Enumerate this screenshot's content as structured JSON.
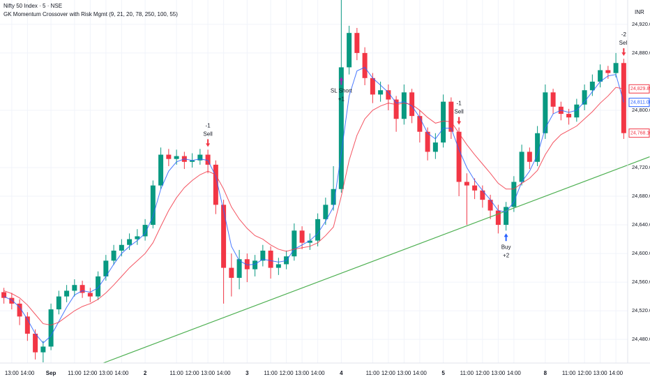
{
  "chart_data": {
    "type": "candlestick",
    "title": "Nifty 50 Index · 5 · NSE",
    "subtitle": "GK Momentum Crossover with Risk Mgmt (9, 21, 20, 78, 250, 100, 55)",
    "currency": "INR",
    "up_color": "#089981",
    "down_color": "#f23645",
    "grid": true,
    "categories": [
      null,
      "13:00",
      null,
      "14:00",
      null,
      null,
      "Sep",
      null,
      null,
      "11:00",
      null,
      "12:00",
      null,
      "13:00",
      null,
      "14:00",
      null,
      null,
      "2",
      null,
      null,
      null,
      "11:00",
      null,
      "12:00",
      null,
      "13:00",
      null,
      "14:00",
      null,
      null,
      "3",
      null,
      null,
      "11:00",
      null,
      "12:00",
      null,
      "13:00",
      null,
      "14:00",
      null,
      null,
      "4",
      null,
      null,
      null,
      "11:00",
      null,
      "12:00",
      null,
      "13:00",
      null,
      "14:00",
      null,
      null,
      "5",
      null,
      null,
      "11:00",
      null,
      "12:00",
      null,
      "13:00",
      null,
      "14:00",
      null,
      null,
      null,
      "8",
      null,
      null,
      "11:00",
      null,
      "12:00",
      null,
      "13:00",
      null,
      "14:00",
      null
    ],
    "open": [
      24546,
      24538,
      24530,
      24512,
      24488,
      24462,
      24470,
      24522,
      24540,
      24548,
      24556,
      24545,
      24540,
      24568,
      24590,
      24604,
      24612,
      24620,
      24624,
      24640,
      24695,
      24738,
      24732,
      24736,
      24728,
      24730,
      24738,
      24724,
      24668,
      24580,
      24566,
      24592,
      24578,
      24590,
      24604,
      24580,
      24585,
      24596,
      24632,
      24615,
      24618,
      24648,
      24668,
      24690,
      24860,
      24908,
      24880,
      24845,
      24822,
      24828,
      24815,
      24788,
      24825,
      24792,
      24770,
      24742,
      24755,
      24812,
      24770,
      24700,
      24695,
      24688,
      24675,
      24660,
      24640,
      24665,
      24700,
      24742,
      24728,
      24768,
      24825,
      24805,
      24795,
      24790,
      24808,
      24828,
      24840,
      24856,
      24852,
      24866
    ],
    "high": [
      24552,
      24545,
      24536,
      24518,
      24494,
      24478,
      24530,
      24548,
      24556,
      24564,
      24562,
      24552,
      24575,
      24598,
      24612,
      24620,
      24628,
      24634,
      24648,
      24702,
      24748,
      24746,
      24745,
      24742,
      24740,
      24746,
      24745,
      24730,
      24675,
      24600,
      24605,
      24600,
      24598,
      24612,
      24610,
      24594,
      24604,
      24642,
      24638,
      24628,
      24656,
      24678,
      24722,
      24954,
      24918,
      24915,
      24888,
      24852,
      24840,
      24836,
      24820,
      24836,
      24830,
      24800,
      24776,
      24768,
      24822,
      24818,
      24776,
      24712,
      24705,
      24695,
      24682,
      24668,
      24672,
      24708,
      24752,
      24748,
      24778,
      24836,
      24830,
      24812,
      24802,
      24816,
      24836,
      24850,
      24864,
      24862,
      24880,
      24872
    ],
    "low": [
      24530,
      24522,
      24500,
      24478,
      24452,
      24448,
      24465,
      24515,
      24532,
      24540,
      24538,
      24532,
      24535,
      24562,
      24584,
      24596,
      24605,
      24612,
      24618,
      24635,
      24690,
      24722,
      24724,
      24718,
      24720,
      24724,
      24712,
      24655,
      24530,
      24540,
      24550,
      24560,
      24568,
      24582,
      24565,
      24570,
      24578,
      24590,
      24606,
      24605,
      24610,
      24640,
      24660,
      24685,
      24850,
      24870,
      24835,
      24810,
      24812,
      24800,
      24770,
      24780,
      24782,
      24755,
      24730,
      24732,
      24748,
      24760,
      24680,
      24640,
      24676,
      24664,
      24648,
      24628,
      24632,
      24658,
      24695,
      24718,
      24722,
      24760,
      24795,
      24786,
      24780,
      24784,
      24800,
      24820,
      24832,
      24844,
      24846,
      24760
    ],
    "close": [
      24538,
      24530,
      24512,
      24488,
      24462,
      24470,
      24522,
      24540,
      24548,
      24556,
      24545,
      24540,
      24568,
      24590,
      24604,
      24612,
      24620,
      24624,
      24640,
      24695,
      24738,
      24732,
      24736,
      24728,
      24730,
      24738,
      24724,
      24668,
      24580,
      24566,
      24592,
      24578,
      24590,
      24604,
      24580,
      24585,
      24596,
      24632,
      24615,
      24618,
      24648,
      24668,
      24690,
      24860,
      24908,
      24880,
      24845,
      24822,
      24828,
      24815,
      24788,
      24825,
      24792,
      24770,
      24742,
      24755,
      24812,
      24770,
      24700,
      24695,
      24688,
      24675,
      24660,
      24640,
      24665,
      24700,
      24742,
      24728,
      24768,
      24825,
      24805,
      24795,
      24790,
      24808,
      24828,
      24840,
      24856,
      24852,
      24866,
      24768.1
    ],
    "lines": [
      {
        "color": "#2962ff",
        "values": [
          24540,
          24535,
          24525,
          24508,
          24488,
          24475,
          24485,
          24505,
          24525,
          24542,
          24548,
          24546,
          24552,
          24568,
          24585,
          24600,
          24610,
          24618,
          24628,
          24652,
          24690,
          24715,
          24728,
          24732,
          24730,
          24732,
          24730,
          24708,
          24660,
          24610,
          24590,
          24584,
          24585,
          24592,
          24590,
          24588,
          24590,
          24606,
          24612,
          24618,
          24628,
          24645,
          24665,
          24740,
          24820,
          24855,
          24860,
          24845,
          24835,
          24825,
          24810,
          24812,
          24806,
          24790,
          24768,
          24760,
          24775,
          24775,
          24745,
          24720,
          24702,
          24688,
          24675,
          24660,
          24658,
          24672,
          24700,
          24715,
          24738,
          24775,
          24795,
          24800,
          24797,
          24800,
          24812,
          24826,
          24840,
          24848,
          24850,
          24811
        ]
      },
      {
        "color": "#f23645",
        "values": [
          24548,
          24544,
          24538,
          24528,
          24515,
          24502,
          24500,
          24504,
          24512,
          24520,
          24526,
          24530,
          24536,
          24545,
          24556,
          24568,
          24580,
          24590,
          24600,
          24615,
          24638,
          24660,
          24678,
          24692,
          24702,
          24710,
          24715,
          24710,
          24690,
          24665,
          24648,
          24635,
          24625,
          24620,
          24612,
          24606,
          24603,
          24606,
          24608,
          24610,
          24615,
          24625,
          24637,
          24680,
          24730,
          24765,
          24788,
          24800,
          24806,
          24810,
          24808,
          24810,
          24808,
          24800,
          24790,
          24782,
          24785,
          24784,
          24768,
          24752,
          24738,
          24725,
          24712,
          24698,
          24690,
          24690,
          24698,
          24705,
          24716,
          24738,
          24755,
          24766,
          24772,
          24778,
          24788,
          24798,
          24810,
          24820,
          24832,
          24829.89
        ]
      }
    ],
    "trendline": {
      "color": "#4caf50",
      "x": [
        12.66,
        82.3
      ],
      "values": [
        24447,
        24735
      ]
    },
    "signals": [
      {
        "index": 26,
        "side": "sell",
        "qty": "-1",
        "text": "Sell",
        "color": "#f23645"
      },
      {
        "index": 43,
        "side": "sl",
        "qty": "+1",
        "text": "SL Short",
        "color": "#9c27b0"
      },
      {
        "index": 58,
        "side": "sell",
        "qty": "-1",
        "text": "Sell",
        "color": "#f23645"
      },
      {
        "index": 64,
        "side": "buy",
        "qty": "+2",
        "text": "Buy",
        "color": "#2962ff"
      },
      {
        "index": 79,
        "side": "sell",
        "qty": "-2",
        "text": "Sell",
        "color": "#f23645"
      }
    ],
    "price_labels": [
      {
        "value": 24829.89,
        "label": "24,829.89",
        "color": "#f23645"
      },
      {
        "value": 24811.0,
        "label": "24,811.00",
        "color": "#2962ff"
      },
      {
        "value": 24768.1,
        "label": "24,768.10",
        "color": "#f23645"
      }
    ],
    "ylim": [
      24447,
      24954
    ],
    "yticks": [
      {
        "value": 24480,
        "label": "24,480.00"
      },
      {
        "value": 24520,
        "label": "24,520.00"
      },
      {
        "value": 24560,
        "label": "24,560.00"
      },
      {
        "value": 24600,
        "label": "24,600.00"
      },
      {
        "value": 24640,
        "label": "24,640.00"
      },
      {
        "value": 24680,
        "label": "24,680.00"
      },
      {
        "value": 24720,
        "label": "24,720.00"
      },
      {
        "value": 24800,
        "label": "24,800.00"
      },
      {
        "value": 24880,
        "label": "24,880.00"
      },
      {
        "value": 24920,
        "label": "24,920.00"
      }
    ]
  }
}
